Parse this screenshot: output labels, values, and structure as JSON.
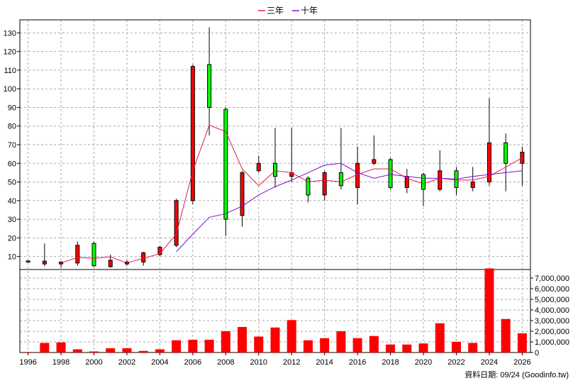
{
  "chart_data": {
    "type": "candlestick",
    "legend": {
      "placement": "top-center",
      "items": [
        {
          "name": "三年",
          "color": "#e8174f"
        },
        {
          "name": "十年",
          "color": "#7a12c8"
        }
      ]
    },
    "x_labels": [
      "1996",
      "1998",
      "2000",
      "2002",
      "2004",
      "2006",
      "2008",
      "2010",
      "2012",
      "2014",
      "2016",
      "2018",
      "2020",
      "2022",
      "2024",
      "2026"
    ],
    "x_range": [
      1995.5,
      2026.5
    ],
    "price_axis": {
      "ylim": [
        3,
        137
      ],
      "ticks": [
        10,
        20,
        30,
        40,
        50,
        60,
        70,
        80,
        90,
        100,
        110,
        120,
        130
      ],
      "position": "left"
    },
    "volume_axis": {
      "ylim": [
        0,
        7800000
      ],
      "ticks": [
        "0",
        "1,000,000",
        "2,000,000",
        "3,000,000",
        "4,000,000",
        "5,000,000",
        "6,000,000",
        "7,000,000"
      ],
      "tick_values": [
        0,
        1000000,
        2000000,
        3000000,
        4000000,
        5000000,
        6000000,
        7000000
      ],
      "position": "right"
    },
    "grid": true,
    "up_color": "#ff0000",
    "down_color": "#00ff00",
    "candles": [
      {
        "year": 1996,
        "open": 7.0,
        "close": 7.6,
        "high": 8.0,
        "low": 6.8
      },
      {
        "year": 1997,
        "open": 6.0,
        "close": 7.5,
        "high": 17.0,
        "low": 4.8
      },
      {
        "year": 1998,
        "open": 6.0,
        "close": 7.0,
        "high": 7.5,
        "low": 4.0
      },
      {
        "year": 1999,
        "open": 6.5,
        "close": 16.0,
        "high": 18.0,
        "low": 5.0
      },
      {
        "year": 2000,
        "open": 17.0,
        "close": 5.0,
        "high": 18.0,
        "low": 4.5
      },
      {
        "year": 2001,
        "open": 4.5,
        "close": 8.0,
        "high": 11.0,
        "low": 4.0
      },
      {
        "year": 2002,
        "open": 6.0,
        "close": 7.0,
        "high": 8.0,
        "low": 5.0
      },
      {
        "year": 2003,
        "open": 7.0,
        "close": 12.0,
        "high": 12.5,
        "low": 5.0
      },
      {
        "year": 2004,
        "open": 11.0,
        "close": 15.0,
        "high": 15.5,
        "low": 10.0
      },
      {
        "year": 2005,
        "open": 16.0,
        "close": 40.0,
        "high": 41.0,
        "low": 15.0
      },
      {
        "year": 2006,
        "open": 40.0,
        "close": 112.0,
        "high": 113.0,
        "low": 38.0
      },
      {
        "year": 2007,
        "open": 113.0,
        "close": 90.0,
        "high": 133.0,
        "low": 75.0
      },
      {
        "year": 2008,
        "open": 89.0,
        "close": 30.0,
        "high": 90.0,
        "low": 21.0
      },
      {
        "year": 2009,
        "open": 32.0,
        "close": 55.0,
        "high": 56.0,
        "low": 26.0
      },
      {
        "year": 2010,
        "open": 56.0,
        "close": 60.0,
        "high": 64.0,
        "low": 55.0
      },
      {
        "year": 2011,
        "open": 60.0,
        "close": 53.0,
        "high": 79.0,
        "low": 47.0
      },
      {
        "year": 2012,
        "open": 53.0,
        "close": 55.0,
        "high": 79.0,
        "low": 50.0
      },
      {
        "year": 2013,
        "open": 52.0,
        "close": 43.0,
        "high": 53.0,
        "low": 39.0
      },
      {
        "year": 2014,
        "open": 43.0,
        "close": 55.0,
        "high": 56.0,
        "low": 40.0
      },
      {
        "year": 2015,
        "open": 55.0,
        "close": 48.0,
        "high": 79.0,
        "low": 46.0
      },
      {
        "year": 2016,
        "open": 47.0,
        "close": 60.0,
        "high": 69.0,
        "low": 38.0
      },
      {
        "year": 2017,
        "open": 60.0,
        "close": 62.0,
        "high": 75.0,
        "low": 59.0
      },
      {
        "year": 2018,
        "open": 62.0,
        "close": 47.0,
        "high": 63.0,
        "low": 46.0
      },
      {
        "year": 2019,
        "open": 47.0,
        "close": 53.0,
        "high": 57.0,
        "low": 44.0
      },
      {
        "year": 2020,
        "open": 54.0,
        "close": 46.0,
        "high": 55.0,
        "low": 37.0
      },
      {
        "year": 2021,
        "open": 46.0,
        "close": 56.0,
        "high": 67.0,
        "low": 45.0
      },
      {
        "year": 2022,
        "open": 56.0,
        "close": 47.0,
        "high": 58.0,
        "low": 43.0
      },
      {
        "year": 2023,
        "open": 47.0,
        "close": 50.0,
        "high": 58.0,
        "low": 45.0
      },
      {
        "year": 2024,
        "open": 50.0,
        "close": 71.0,
        "high": 95.0,
        "low": 48.0
      },
      {
        "year": 2025,
        "open": 71.0,
        "close": 60.0,
        "high": 76.0,
        "low": 45.0
      },
      {
        "year": 2026,
        "open": 60.0,
        "close": 66.0,
        "high": 69.0,
        "low": 48.0
      }
    ],
    "series": [
      {
        "name": "三年",
        "color": "#e8174f",
        "points": [
          [
            1998,
            6.5
          ],
          [
            1999,
            9.5
          ],
          [
            2000,
            9.0
          ],
          [
            2001,
            9.8
          ],
          [
            2002,
            6.5
          ],
          [
            2003,
            9.0
          ],
          [
            2004,
            11.5
          ],
          [
            2005,
            22.0
          ],
          [
            2006,
            56.0
          ],
          [
            2007,
            80.5
          ],
          [
            2008,
            77.0
          ],
          [
            2009,
            57.0
          ],
          [
            2010,
            48.0
          ],
          [
            2011,
            56.0
          ],
          [
            2012,
            55.0
          ],
          [
            2013,
            50.0
          ],
          [
            2014,
            51.0
          ],
          [
            2015,
            50.0
          ],
          [
            2016,
            54.0
          ],
          [
            2017,
            57.0
          ],
          [
            2018,
            57.0
          ],
          [
            2019,
            52.0
          ],
          [
            2020,
            49.0
          ],
          [
            2021,
            52.0
          ],
          [
            2022,
            51.0
          ],
          [
            2023,
            51.0
          ],
          [
            2024,
            53.0
          ],
          [
            2025,
            58.0
          ],
          [
            2026,
            63.0
          ]
        ]
      },
      {
        "name": "十年",
        "color": "#7a12c8",
        "points": [
          [
            2005,
            12.5
          ],
          [
            2006,
            22.0
          ],
          [
            2007,
            31.0
          ],
          [
            2008,
            33.0
          ],
          [
            2009,
            37.0
          ],
          [
            2010,
            43.0
          ],
          [
            2011,
            47.5
          ],
          [
            2012,
            51.0
          ],
          [
            2013,
            55.0
          ],
          [
            2014,
            59.0
          ],
          [
            2015,
            60.0
          ],
          [
            2016,
            55.0
          ],
          [
            2017,
            52.0
          ],
          [
            2018,
            54.0
          ],
          [
            2019,
            53.0
          ],
          [
            2020,
            52.0
          ],
          [
            2021,
            52.0
          ],
          [
            2022,
            51.5
          ],
          [
            2023,
            53.0
          ],
          [
            2024,
            54.0
          ],
          [
            2025,
            55.0
          ],
          [
            2026,
            56.0
          ]
        ]
      }
    ],
    "volume": [
      {
        "year": 1996,
        "value": 50000
      },
      {
        "year": 1997,
        "value": 900000
      },
      {
        "year": 1998,
        "value": 950000
      },
      {
        "year": 1999,
        "value": 300000
      },
      {
        "year": 2000,
        "value": 100000
      },
      {
        "year": 2001,
        "value": 400000
      },
      {
        "year": 2002,
        "value": 400000
      },
      {
        "year": 2003,
        "value": 150000
      },
      {
        "year": 2004,
        "value": 300000
      },
      {
        "year": 2005,
        "value": 1150000
      },
      {
        "year": 2006,
        "value": 1200000
      },
      {
        "year": 2007,
        "value": 1200000
      },
      {
        "year": 2008,
        "value": 2000000
      },
      {
        "year": 2009,
        "value": 2400000
      },
      {
        "year": 2010,
        "value": 1500000
      },
      {
        "year": 2011,
        "value": 2350000
      },
      {
        "year": 2012,
        "value": 3050000
      },
      {
        "year": 2013,
        "value": 1150000
      },
      {
        "year": 2014,
        "value": 1350000
      },
      {
        "year": 2015,
        "value": 2000000
      },
      {
        "year": 2016,
        "value": 1350000
      },
      {
        "year": 2017,
        "value": 1550000
      },
      {
        "year": 2018,
        "value": 750000
      },
      {
        "year": 2019,
        "value": 750000
      },
      {
        "year": 2020,
        "value": 850000
      },
      {
        "year": 2021,
        "value": 2750000
      },
      {
        "year": 2022,
        "value": 1000000
      },
      {
        "year": 2023,
        "value": 900000
      },
      {
        "year": 2024,
        "value": 7900000
      },
      {
        "year": 2025,
        "value": 3150000
      },
      {
        "year": 2026,
        "value": 1800000
      }
    ],
    "footer": "資料日期: 09/24 (Goodinfo.tw)"
  }
}
